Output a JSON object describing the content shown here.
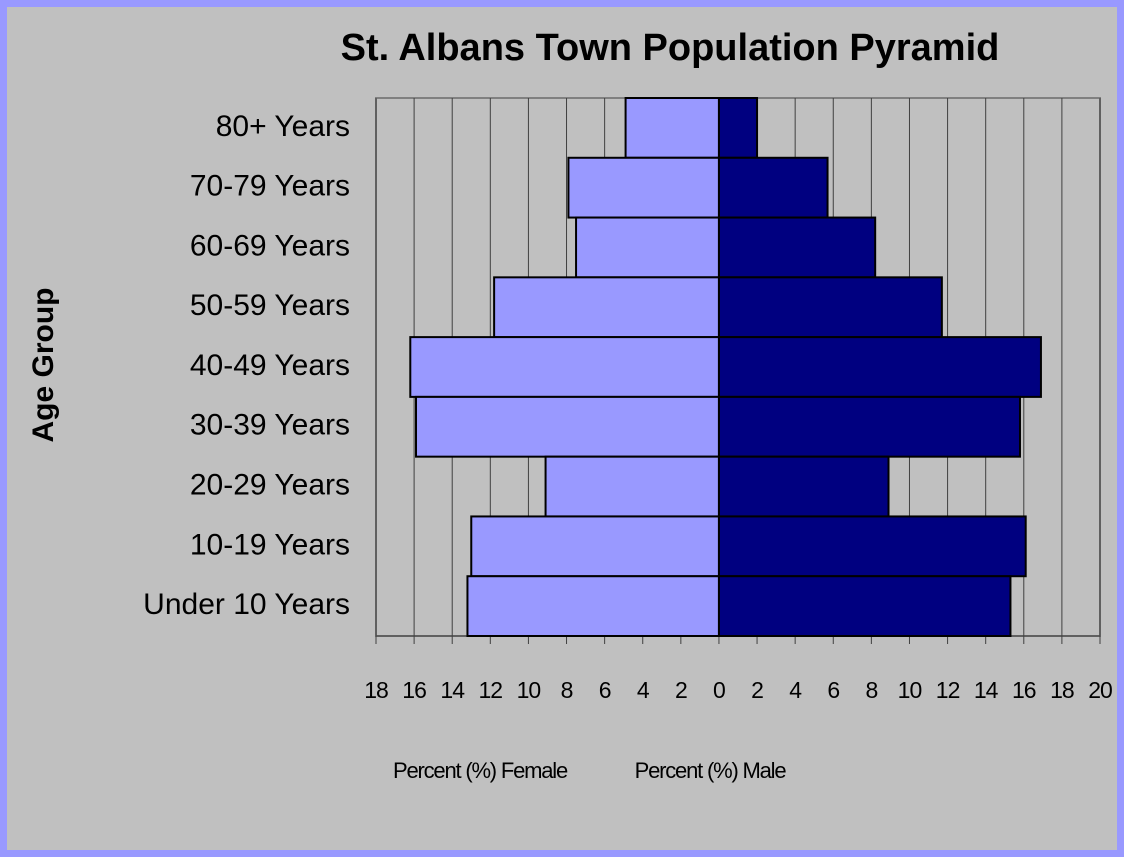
{
  "chart_data": {
    "type": "pyramid",
    "title": "St. Albans Town Population Pyramid",
    "y_label": "Age Group",
    "categories": [
      "80+ Years",
      "70-79 Years",
      "60-69 Years",
      "50-59 Years",
      "40-49 Years",
      "30-39 Years",
      "20-29 Years",
      "10-19 Years",
      "Under 10 Years"
    ],
    "series": [
      {
        "name": "Percent (%) Female",
        "color": "#9999ff",
        "values": [
          -4.9,
          -7.9,
          -7.5,
          -11.8,
          -16.2,
          -15.9,
          -9.1,
          -13.0,
          -13.2
        ]
      },
      {
        "name": "Percent (%) Male",
        "color": "#000080",
        "values": [
          2.0,
          5.7,
          8.2,
          11.7,
          16.9,
          15.8,
          8.9,
          16.1,
          15.3
        ]
      }
    ],
    "xlim": [
      -18,
      20
    ],
    "xticks": [
      {
        "value": -18,
        "label": "18"
      },
      {
        "value": -16,
        "label": "16"
      },
      {
        "value": -14,
        "label": "14"
      },
      {
        "value": -12,
        "label": "12"
      },
      {
        "value": -10,
        "label": "10"
      },
      {
        "value": -8,
        "label": "8"
      },
      {
        "value": -6,
        "label": "6"
      },
      {
        "value": -4,
        "label": "4"
      },
      {
        "value": -2,
        "label": "2"
      },
      0,
      2,
      4,
      6,
      8,
      10,
      12,
      14,
      16,
      18,
      20
    ],
    "grid": true
  }
}
